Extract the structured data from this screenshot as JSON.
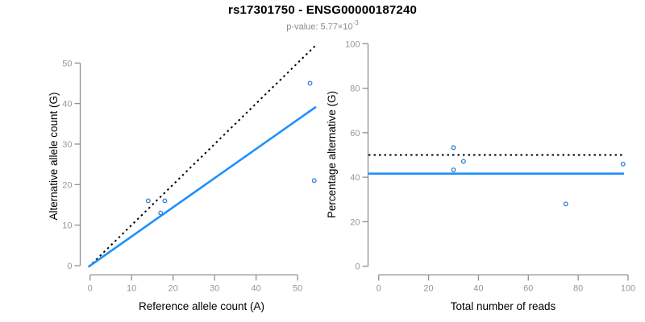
{
  "colors": {
    "background": "#FFFFFF",
    "point": "#2E7FD0",
    "fit_line": "#1E90FF",
    "reference_line": "#000000",
    "axis": "#909090",
    "tick_label": "#979797",
    "axis_label": "#000000",
    "title": "#000000",
    "subtitle": "#8C8C8C"
  },
  "chart_data": {
    "type": "scatter",
    "title": "rs17301750 - ENSG00000187240",
    "subtitle_prefix": "p-value: 5.77×10",
    "subtitle_exponent": "-3",
    "legend": "none",
    "grid": "off",
    "panels": [
      {
        "name": "allele-counts-panel",
        "type": "scatter",
        "xlabel": "Reference allele count (A)",
        "ylabel": "Alternative allele count (G)",
        "xticks": [
          0,
          10,
          20,
          30,
          40,
          50
        ],
        "yticks": [
          0,
          10,
          20,
          30,
          40,
          50
        ],
        "xlim": [
          0,
          54
        ],
        "ylim": [
          0,
          54
        ],
        "points": [
          {
            "x": 14,
            "y": 16
          },
          {
            "x": 18,
            "y": 16
          },
          {
            "x": 17,
            "y": 13
          },
          {
            "x": 53,
            "y": 45
          },
          {
            "x": 54,
            "y": 21
          }
        ],
        "lines": [
          {
            "kind": "abline",
            "slope": 1,
            "intercept": 0,
            "dash": "dotted",
            "color": "#000000",
            "width": 2,
            "name": "identity-line"
          },
          {
            "kind": "abline",
            "slope": 0.72,
            "intercept": 0,
            "dash": "solid",
            "color": "#1E90FF",
            "width": 2.6,
            "name": "fitted-ratio-line"
          }
        ]
      },
      {
        "name": "percentage-panel",
        "type": "scatter",
        "xlabel": "Total number of reads",
        "ylabel": "Percentage alternative (G)",
        "xticks": [
          0,
          20,
          40,
          60,
          80,
          100
        ],
        "yticks": [
          0,
          20,
          40,
          60,
          80,
          100
        ],
        "xlim": [
          0,
          100
        ],
        "ylim": [
          0,
          100
        ],
        "points": [
          {
            "x": 30,
            "y": 53.3
          },
          {
            "x": 34,
            "y": 47.1
          },
          {
            "x": 30,
            "y": 43.3
          },
          {
            "x": 75,
            "y": 28
          },
          {
            "x": 98,
            "y": 45.9
          }
        ],
        "lines": [
          {
            "kind": "hline",
            "y": 50,
            "dash": "dotted",
            "color": "#000000",
            "width": 2,
            "name": "null-50-percent-line"
          },
          {
            "kind": "hline",
            "y": 41.6,
            "dash": "solid",
            "color": "#1E90FF",
            "width": 2.6,
            "name": "fitted-percentage-line"
          }
        ]
      }
    ]
  }
}
